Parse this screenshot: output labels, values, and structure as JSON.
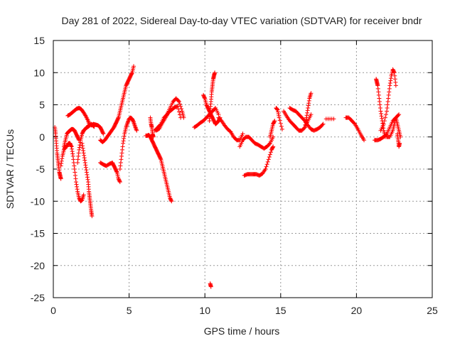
{
  "chart_data": {
    "type": "scatter",
    "title": "Day 281 of 2022, Sidereal Day-to-day VTEC variation (SDTVAR) for receiver bndr",
    "xlabel": "GPS time / hours",
    "ylabel": "SDTVAR / TECUs",
    "xlim": [
      0,
      25
    ],
    "ylim": [
      -25,
      15
    ],
    "xticks": [
      0,
      5,
      10,
      15,
      20,
      25
    ],
    "yticks": [
      15,
      10,
      5,
      0,
      -5,
      -10,
      -15,
      -20,
      -25
    ],
    "grid": true,
    "marker": "+",
    "marker_color": "#ff0000",
    "series": [
      {
        "name": "s1",
        "x": [
          0.1,
          0.15,
          0.2,
          0.25,
          0.3,
          0.35,
          0.4,
          0.45,
          0.5
        ],
        "y": [
          1.5,
          0.5,
          -1,
          -2.5,
          -3.5,
          -4.5,
          -5.5,
          -6,
          -6.5
        ]
      },
      {
        "name": "s2",
        "x": [
          0.5,
          0.6,
          0.7,
          0.8,
          0.9,
          1.0,
          1.1,
          1.2
        ],
        "y": [
          -4.5,
          -3,
          -2,
          -1.5,
          -1.5,
          -1,
          -1,
          -1.5
        ]
      },
      {
        "name": "s3",
        "x": [
          0.7,
          0.8,
          0.9,
          1.0,
          1.1,
          1.2,
          1.3,
          1.4,
          1.5,
          1.6,
          1.7
        ],
        "y": [
          -1.5,
          -0.5,
          0.5,
          0.8,
          1,
          1.2,
          1.2,
          1,
          0.5,
          0,
          -0.5
        ]
      },
      {
        "name": "s4",
        "x": [
          1.2,
          1.3,
          1.4,
          1.5,
          1.6,
          1.7,
          1.8,
          1.9,
          2.0
        ],
        "y": [
          -1.5,
          -3,
          -5,
          -7,
          -8.5,
          -9.5,
          -10,
          -9.8,
          -9
        ]
      },
      {
        "name": "s5",
        "x": [
          0.95,
          1.1,
          1.25,
          1.4,
          1.55,
          1.7,
          1.85,
          2.0,
          2.15,
          2.3,
          2.4
        ],
        "y": [
          3.3,
          3.5,
          3.8,
          4.1,
          4.4,
          4.5,
          4.3,
          3.8,
          3.2,
          2.5,
          1.8
        ]
      },
      {
        "name": "s6",
        "x": [
          1.6,
          1.7,
          1.8,
          1.9,
          2.0,
          2.1,
          2.2,
          2.3,
          2.4,
          2.5,
          2.6,
          2.7
        ],
        "y": [
          -4,
          -2,
          -0.5,
          0.5,
          1,
          1.2,
          1.5,
          1.6,
          1.8,
          2,
          1.8,
          1.6
        ]
      },
      {
        "name": "s7",
        "x": [
          1.9,
          2.0,
          2.1,
          2.2,
          2.3,
          2.35,
          2.4,
          2.45,
          2.5,
          2.55
        ],
        "y": [
          -1,
          -2.5,
          -4,
          -5.5,
          -7,
          -8.5,
          -9.5,
          -10.5,
          -11.5,
          -12.3
        ]
      },
      {
        "name": "s8",
        "x": [
          2.5,
          2.65,
          2.8,
          2.95,
          3.1,
          3.2,
          3.3
        ],
        "y": [
          1.8,
          2,
          1.9,
          1.8,
          1.5,
          1,
          0.5
        ]
      },
      {
        "name": "s9",
        "x": [
          3.1,
          3.25,
          3.4,
          3.55,
          3.7,
          3.85,
          4.0,
          4.1,
          4.2,
          4.3
        ],
        "y": [
          -0.5,
          -0.8,
          -0.5,
          0,
          0.5,
          1,
          1.5,
          2,
          2.5,
          3
        ]
      },
      {
        "name": "s10",
        "x": [
          3.1,
          3.3,
          3.5,
          3.7,
          3.9,
          4.0,
          4.1,
          4.2,
          4.3,
          4.4
        ],
        "y": [
          -4,
          -4.3,
          -4.5,
          -4.2,
          -4,
          -4.5,
          -5,
          -5.5,
          -6.5,
          -7
        ]
      },
      {
        "name": "s11",
        "x": [
          4.3,
          4.4,
          4.5,
          4.6,
          4.7,
          4.8,
          4.9,
          5.0,
          5.1,
          5.2,
          5.3
        ],
        "y": [
          3,
          4,
          5,
          6,
          7,
          8,
          8.5,
          9,
          9.5,
          10,
          11
        ]
      },
      {
        "name": "s12",
        "x": [
          4.4,
          4.5,
          4.6,
          4.7,
          4.8,
          4.9,
          5.0,
          5.1,
          5.2,
          5.3,
          5.4,
          5.5
        ],
        "y": [
          -5,
          -3,
          -1,
          0.5,
          1.5,
          2.2,
          2.8,
          3,
          2.8,
          2.3,
          1.6,
          1
        ]
      },
      {
        "name": "s13",
        "x": [
          6.1,
          6.2,
          6.3,
          6.4,
          6.5,
          6.6,
          6.7,
          6.8,
          6.9,
          7.0,
          7.1,
          7.2,
          7.3,
          7.4,
          7.5,
          7.6,
          7.7,
          7.8
        ],
        "y": [
          0.2,
          0.2,
          0.3,
          0,
          -0.5,
          -1,
          -1.5,
          -2,
          -2.5,
          -3,
          -3.5,
          -4.5,
          -5.5,
          -6.5,
          -7.5,
          -8.5,
          -9.5,
          -10
        ]
      },
      {
        "name": "s14",
        "x": [
          6.4,
          6.45,
          6.5,
          6.55,
          6.6
        ],
        "y": [
          3,
          2,
          1.5,
          0.5,
          0
        ]
      },
      {
        "name": "s15",
        "x": [
          6.7,
          6.9,
          7.1,
          7.3,
          7.5,
          7.7,
          7.9,
          8.1,
          8.3,
          8.5,
          8.6
        ],
        "y": [
          1,
          1.5,
          2,
          3,
          3.5,
          4.5,
          5.5,
          6,
          5.5,
          4,
          3
        ]
      },
      {
        "name": "s16",
        "x": [
          6.8,
          7.0,
          7.2,
          7.4,
          7.6,
          7.8,
          8.0,
          8.2,
          8.4
        ],
        "y": [
          1,
          1.3,
          2.2,
          3,
          3.8,
          4.2,
          4.6,
          4.8,
          3
        ]
      },
      {
        "name": "s17",
        "x": [
          9.3,
          9.5,
          9.7,
          9.9,
          10.1,
          10.3,
          10.5,
          10.7,
          10.9
        ],
        "y": [
          1.5,
          1.8,
          2.2,
          2.5,
          3,
          3.5,
          4,
          4.5,
          3.5
        ]
      },
      {
        "name": "s18",
        "x": [
          9.9,
          10.0,
          10.1,
          10.2,
          10.3,
          10.4,
          10.5,
          10.6,
          10.7,
          10.8,
          10.9,
          11.0
        ],
        "y": [
          6.5,
          6,
          5,
          4.5,
          4,
          3.5,
          3,
          2.5,
          2,
          2.2,
          2.5,
          3
        ]
      },
      {
        "name": "s19",
        "x": [
          10.3,
          10.35,
          10.4,
          10.45,
          10.5,
          10.55,
          10.6,
          10.65
        ],
        "y": [
          2.5,
          4,
          5.5,
          7,
          8,
          9,
          9.5,
          10
        ]
      },
      {
        "name": "s20",
        "x": [
          10.35,
          10.4
        ],
        "y": [
          -22.8,
          -23.3
        ]
      },
      {
        "name": "s21",
        "x": [
          10.9,
          11.1,
          11.3,
          11.5,
          11.7,
          11.9,
          12.1,
          12.3,
          12.5
        ],
        "y": [
          3,
          2.5,
          1.8,
          1.2,
          0.8,
          0,
          -0.5,
          -0.5,
          0.5
        ]
      },
      {
        "name": "s22",
        "x": [
          12.3,
          12.5,
          12.7,
          12.9,
          13.1,
          13.3,
          13.5,
          13.7,
          13.9,
          14.1,
          14.3,
          14.5
        ],
        "y": [
          -1.5,
          -0.5,
          0,
          0,
          -0.5,
          -1,
          -1.2,
          -1.5,
          -1.8,
          -1.5,
          -1,
          0
        ]
      },
      {
        "name": "s23",
        "x": [
          12.6,
          12.8,
          13.0,
          13.2,
          13.4,
          13.6,
          13.8,
          14.0,
          14.2,
          14.4,
          14.5
        ],
        "y": [
          -6,
          -5.8,
          -5.8,
          -5.8,
          -5.8,
          -6,
          -5.7,
          -5,
          -3.5,
          -2,
          -1.5
        ]
      },
      {
        "name": "s24",
        "x": [
          14.3,
          14.4,
          14.5,
          14.6
        ],
        "y": [
          0,
          1,
          2,
          2.5
        ]
      },
      {
        "name": "s25",
        "x": [
          14.7,
          14.8,
          14.9,
          15.1
        ],
        "y": [
          4.5,
          4.2,
          3,
          1.2
        ]
      },
      {
        "name": "s26",
        "x": [
          15.2,
          15.4,
          15.6,
          15.8,
          16.0,
          16.2,
          16.4,
          16.6,
          16.8,
          17.0
        ],
        "y": [
          4,
          3.2,
          2.5,
          2,
          1.5,
          1,
          1,
          1.5,
          2.5,
          3.5
        ]
      },
      {
        "name": "s27",
        "x": [
          15.6,
          15.8,
          16.0,
          16.2,
          16.4,
          16.6,
          16.8,
          17.0,
          17.2,
          17.4,
          17.6,
          17.8
        ],
        "y": [
          4.5,
          4.2,
          4,
          3.5,
          3,
          2.5,
          1.8,
          1.2,
          1,
          1.2,
          1.5,
          2
        ]
      },
      {
        "name": "s28",
        "x": [
          16.6,
          16.7,
          16.8,
          16.9,
          17.0
        ],
        "y": [
          1.5,
          3,
          4.5,
          6,
          6.8
        ]
      },
      {
        "name": "s29",
        "x": [
          18.0,
          18.5
        ],
        "y": [
          2.8,
          2.8
        ]
      },
      {
        "name": "s30",
        "x": [
          19.3,
          19.5,
          19.7,
          19.9,
          20.1,
          20.3,
          20.5
        ],
        "y": [
          3,
          3,
          2.5,
          2,
          1.2,
          0.3,
          -0.5
        ]
      },
      {
        "name": "s31",
        "x": [
          21.2,
          21.4,
          21.6,
          21.8,
          22.0,
          22.2,
          22.4,
          22.6,
          22.8
        ],
        "y": [
          -0.5,
          -0.5,
          -0.3,
          0,
          0.5,
          1.5,
          2.5,
          3,
          3.5
        ]
      },
      {
        "name": "s32",
        "x": [
          21.3,
          21.35,
          21.4,
          21.5,
          21.6,
          21.7,
          21.8,
          21.9
        ],
        "y": [
          9,
          8.5,
          8,
          6,
          4,
          2.5,
          1,
          0
        ]
      },
      {
        "name": "s33",
        "x": [
          21.6,
          21.8,
          22.0,
          22.1,
          22.2,
          22.3,
          22.4,
          22.5,
          22.6
        ],
        "y": [
          1,
          2,
          4,
          6,
          8,
          9.5,
          10.5,
          10,
          8
        ]
      },
      {
        "name": "s34",
        "x": [
          22.0,
          22.2,
          22.4,
          22.5,
          22.6,
          22.7,
          22.8,
          22.9
        ],
        "y": [
          0,
          0,
          1,
          2,
          3,
          2,
          1,
          0
        ]
      },
      {
        "name": "s35",
        "x": [
          22.7,
          22.75,
          22.8,
          22.85
        ],
        "y": [
          0.5,
          -0.5,
          -1.5,
          -1
        ]
      }
    ]
  }
}
